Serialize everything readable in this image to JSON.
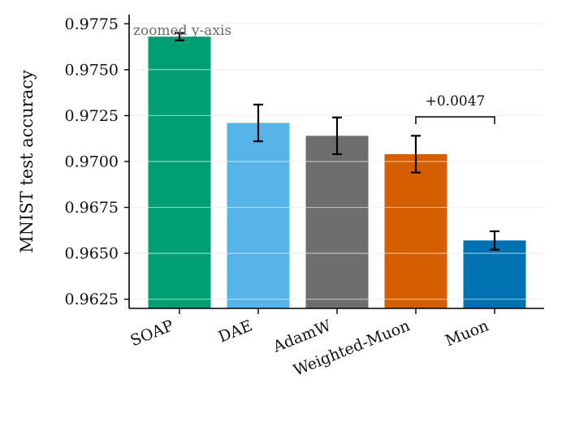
{
  "chart_data": {
    "type": "bar",
    "categories": [
      "SOAP",
      "DAE",
      "AdamW",
      "Weighted-Muon",
      "Muon"
    ],
    "values": [
      0.9768,
      0.9721,
      0.9714,
      0.9704,
      0.9657
    ],
    "errors": [
      0.0002,
      0.001,
      0.001,
      0.001,
      0.0005
    ],
    "colors": [
      "#009E73",
      "#56B4E9",
      "#6E6E6E",
      "#D55E00",
      "#0072B2"
    ],
    "ylabel": "MNIST test accuracy",
    "ylim": [
      0.962,
      0.978
    ],
    "yticks": [
      0.9625,
      0.965,
      0.9675,
      0.97,
      0.9725,
      0.975,
      0.9775
    ],
    "ytick_labels": [
      "0.9625",
      "0.9650",
      "0.9675",
      "0.9700",
      "0.9725",
      "0.9750",
      "0.9775"
    ],
    "annotation": "zoomed y-axis",
    "comparison": {
      "from": "Weighted-Muon",
      "to": "Muon",
      "label": "+0.0047"
    },
    "grid": true
  }
}
